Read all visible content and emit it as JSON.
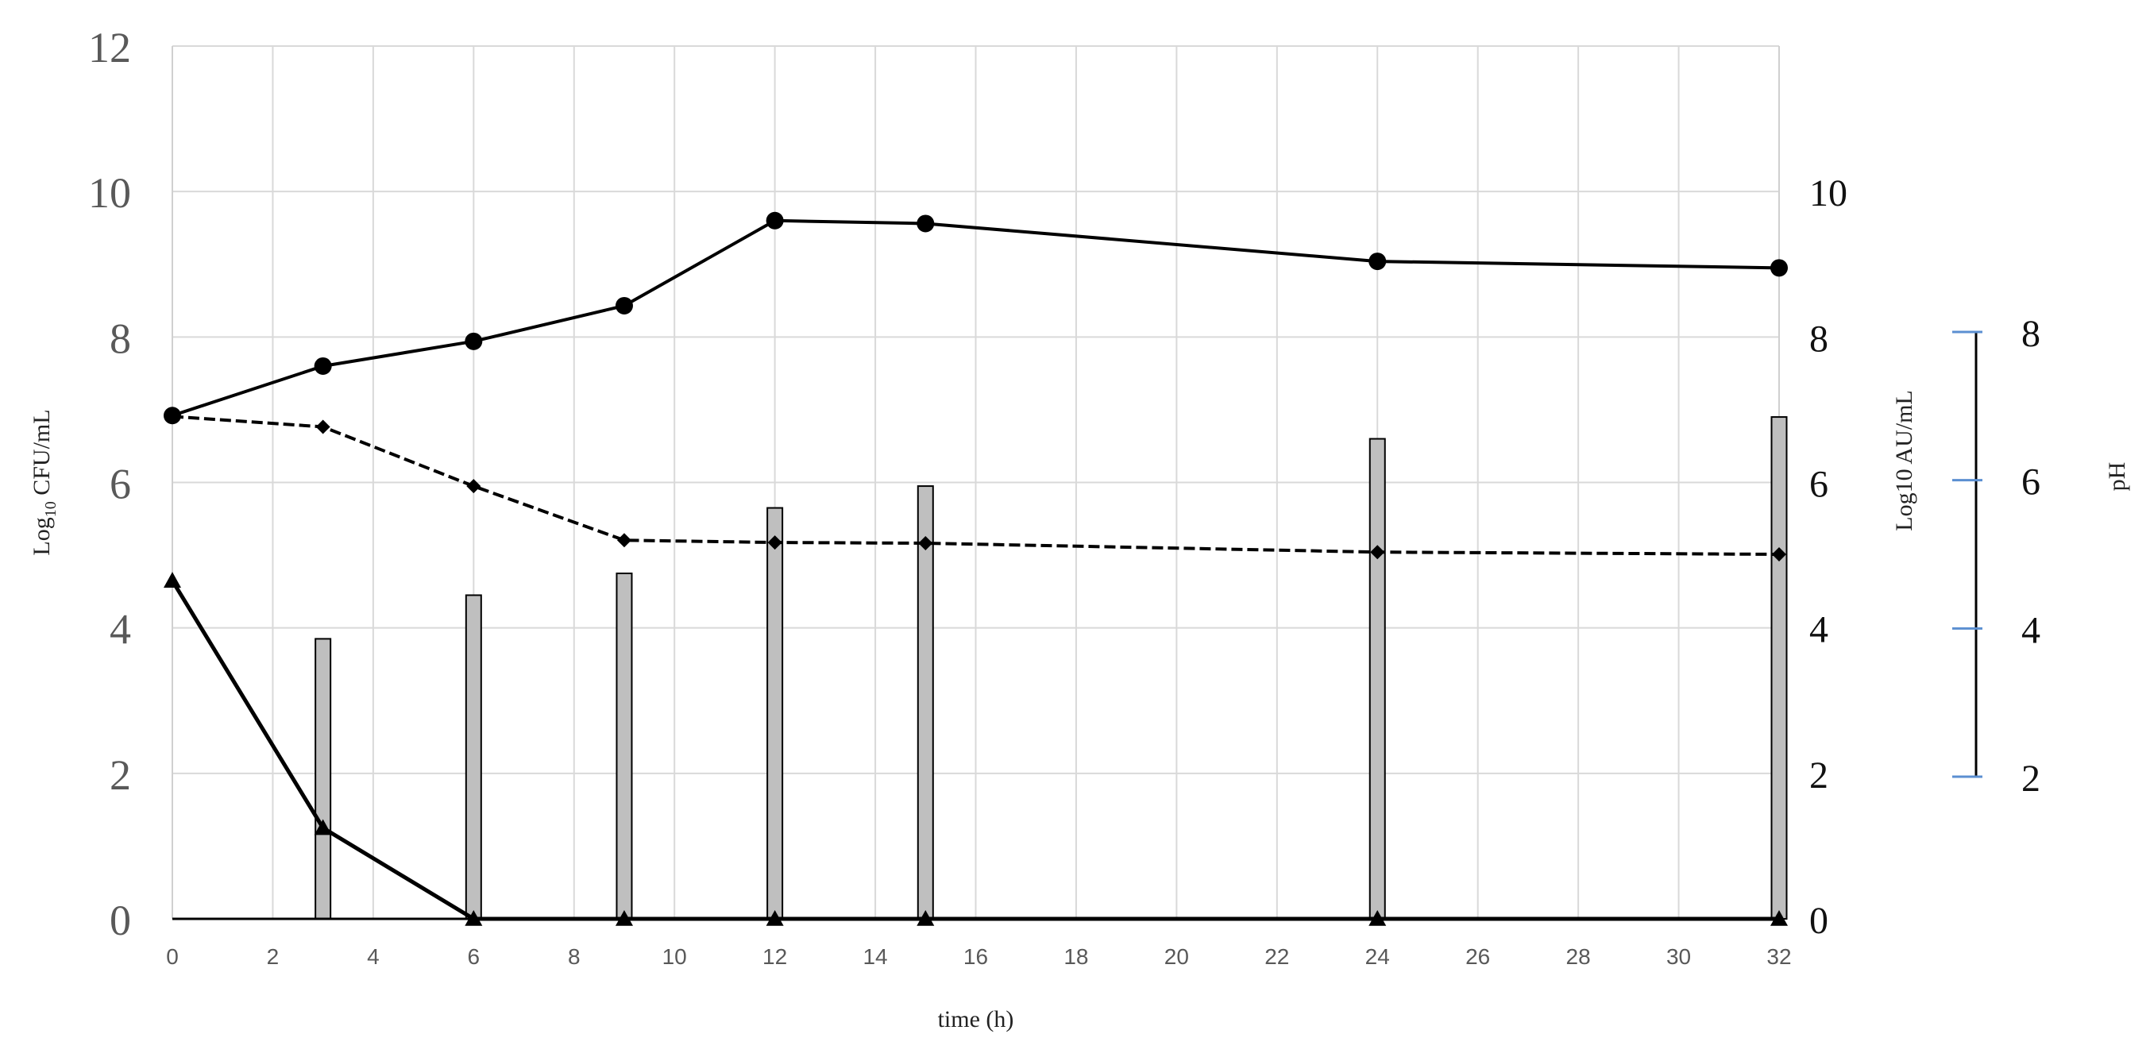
{
  "chart_data": {
    "type": "line",
    "xlabel": "time (h)",
    "ylabel_left": "Log10 CFU/mL",
    "ylabel_right": "Log10 AU/mL",
    "ylabel_ph": "pH",
    "xlim": [
      0,
      32
    ],
    "ylim_left": [
      0,
      12
    ],
    "ylim_right": [
      0,
      12
    ],
    "ylim_ph": [
      2,
      8
    ],
    "x_ticks": [
      0,
      2,
      4,
      6,
      8,
      10,
      12,
      14,
      16,
      18,
      20,
      22,
      24,
      26,
      28,
      30,
      32
    ],
    "x_tick_labels": [
      "0",
      "2",
      "4",
      "6",
      "8",
      "10",
      "12",
      "14",
      "16",
      "18",
      "20",
      "22",
      "24",
      "26",
      "28",
      "30",
      "32"
    ],
    "left_ticks": [
      0,
      2,
      4,
      6,
      8,
      10,
      12
    ],
    "left_tick_labels": [
      "0",
      "2",
      "4",
      "6",
      "8",
      "10",
      "12"
    ],
    "right_ticks": [
      0,
      2,
      4,
      6,
      8,
      10
    ],
    "right_tick_labels": [
      "0",
      "2",
      "4",
      "6",
      "8",
      "10"
    ],
    "ph_ticks": [
      2,
      4,
      6,
      8
    ],
    "ph_tick_labels": [
      "2",
      "4",
      "6",
      "8"
    ],
    "grid": true,
    "series": [
      {
        "type": "bar",
        "axis": "right",
        "x": [
          3,
          6,
          9,
          12,
          15,
          24,
          32
        ],
        "values": [
          3.85,
          4.45,
          4.75,
          5.65,
          5.95,
          6.6,
          6.9
        ]
      },
      {
        "type": "line",
        "axis": "left",
        "marker": "circle",
        "style": "solid",
        "x": [
          0,
          3,
          6,
          9,
          12,
          15,
          24,
          32
        ],
        "values": [
          6.92,
          7.6,
          7.94,
          8.43,
          9.6,
          9.56,
          9.04,
          8.95
        ]
      },
      {
        "type": "line",
        "axis": "ph",
        "marker": "diamond",
        "style": "dashed",
        "x": [
          0,
          3,
          6,
          9,
          12,
          15,
          24,
          32
        ],
        "values": [
          6.86,
          6.72,
          5.92,
          5.19,
          5.16,
          5.15,
          5.03,
          5.0
        ]
      },
      {
        "type": "line",
        "axis": "left",
        "marker": "triangle",
        "style": "solid",
        "x": [
          0,
          3,
          6,
          9,
          12,
          15,
          24,
          32
        ],
        "values": [
          4.65,
          1.25,
          0,
          0,
          0,
          0,
          0,
          0
        ]
      }
    ]
  }
}
